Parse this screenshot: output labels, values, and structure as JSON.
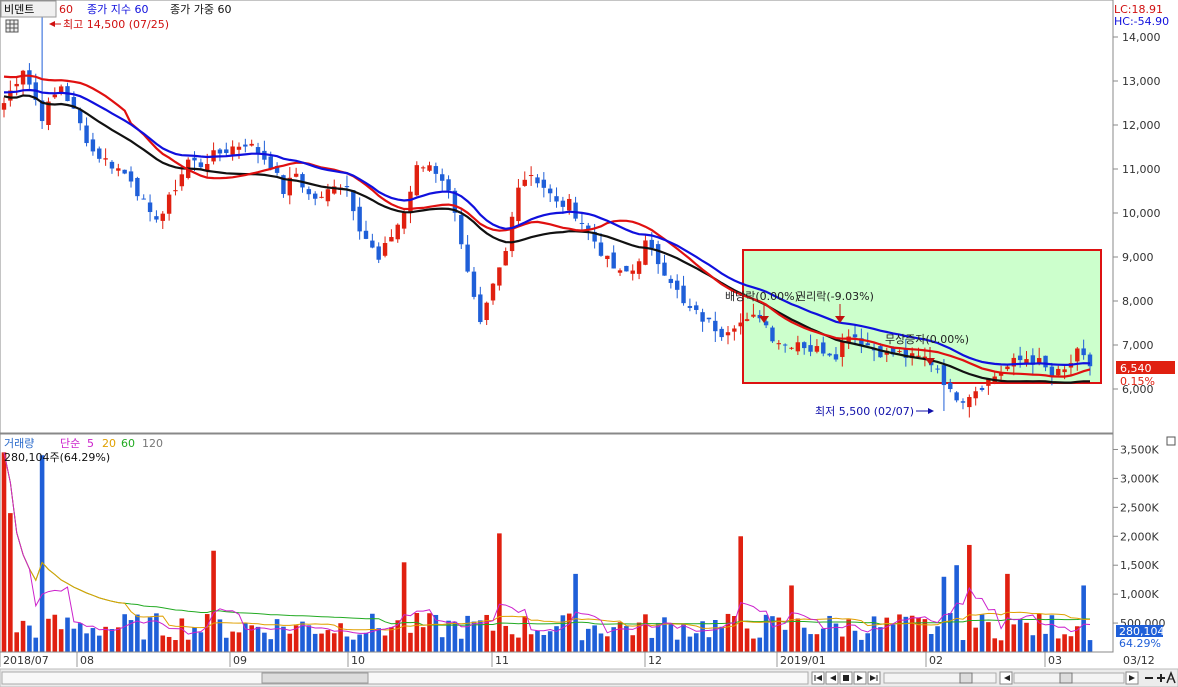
{
  "price_legend": {
    "name": "비덴트",
    "period": "60",
    "series": [
      {
        "name": "종가 지수 60",
        "color": "#1010dd"
      },
      {
        "name": "종가 가중 60",
        "color": "#111111"
      }
    ]
  },
  "corner": {
    "lc": "LC:18.91",
    "hc": "HC:-54.90"
  },
  "annotations": {
    "high": "최고 14,500 (07/25)",
    "low": "최저 5,500 (02/07)",
    "ex_dividend": "배당락(0.00%)",
    "ex_rights": "권리락(-9.03%)",
    "bonus_issue": "무상증자(0.00%)"
  },
  "last_price": {
    "value": "6,540",
    "change": "0.15%"
  },
  "volume_legend": {
    "title": "거래량",
    "ma_label": "단순",
    "periods": [
      {
        "p": "5",
        "color": "#cc22cc"
      },
      {
        "p": "20",
        "color": "#e0a000"
      },
      {
        "p": "60",
        "color": "#22aa22"
      },
      {
        "p": "120",
        "color": "#777777"
      }
    ],
    "current": "280,104주(64.29%)"
  },
  "volume_last": {
    "value": "280,104",
    "pct": "64.29%"
  },
  "date_labels": [
    "2018/07",
    "08",
    "09",
    "10",
    "11",
    "12",
    "2019/01",
    "02",
    "03",
    "03/12"
  ],
  "colors": {
    "up": "#e02010",
    "down": "#1f5fd8",
    "highlight_border": "#dd1111",
    "highlight_fill": "#ccffcc",
    "ma_red": "#e01010",
    "ma_blue": "#1010dd",
    "ma_black": "#111111"
  },
  "chart_data": {
    "type": "candlestick",
    "price_axis": {
      "ticks": [
        "14,000",
        "13,000",
        "12,000",
        "11,000",
        "10,000",
        "9,000",
        "8,000",
        "7,000",
        "6,000"
      ],
      "ylim": [
        5000,
        14750
      ]
    },
    "volume_axis": {
      "ticks": [
        "3,500K",
        "3,000K",
        "2,500K",
        "2,000K",
        "1,500K",
        "1,000K",
        "500,000"
      ],
      "ylim": [
        0,
        3750
      ]
    },
    "candles": [],
    "volume": [],
    "ma_red": [],
    "ma_blue": [],
    "ma_black": [],
    "vol_ma5": [],
    "vol_ma20": [],
    "vol_ma60": []
  }
}
